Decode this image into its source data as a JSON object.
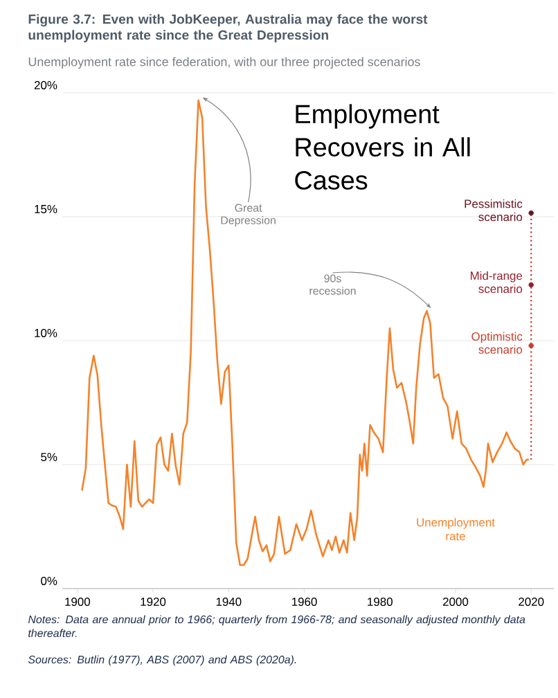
{
  "chart_data": {
    "type": "line",
    "title": "Figure 3.7: Even with JobKeeper, Australia may face the worst unemployment rate since the Great Depression",
    "subtitle": "Unemployment rate since federation, with our three projected scenarios",
    "xlim": [
      1896,
      2026
    ],
    "ylim": [
      0,
      20
    ],
    "xticks": [
      1900,
      1920,
      1940,
      1960,
      1980,
      2000,
      2020
    ],
    "yticks": [
      {
        "value": 0,
        "label": "0%"
      },
      {
        "value": 5,
        "label": "5%"
      },
      {
        "value": 10,
        "label": "10%"
      },
      {
        "value": 15,
        "label": "15%"
      },
      {
        "value": 20,
        "label": "20%"
      }
    ],
    "grid": "y",
    "series": [
      {
        "name": "Unemployment rate",
        "color": "#f4822a",
        "x": [
          1901.2,
          1902.2,
          1903.2,
          1904.3,
          1905.3,
          1906.3,
          1907.2,
          1908.2,
          1909.2,
          1910.2,
          1911.2,
          1912.1,
          1913.1,
          1914.1,
          1915.1,
          1916.1,
          1917.1,
          1918,
          1919,
          1920,
          1921,
          1922,
          1923,
          1924,
          1925,
          1926,
          1927,
          1928,
          1929,
          1930,
          1931,
          1932,
          1933,
          1934,
          1935,
          1936,
          1937,
          1938,
          1939,
          1940,
          1941,
          1942,
          1943,
          1944,
          1945,
          1946,
          1947,
          1948,
          1949,
          1950,
          1951,
          1952,
          1953.3,
          1954.9,
          1956.3,
          1957.9,
          1959.4,
          1960.6,
          1961.8,
          1963.1,
          1964.9,
          1966.4,
          1967.3,
          1968.3,
          1969.3,
          1970.4,
          1971.3,
          1972.2,
          1973.2,
          1974,
          1974.7,
          1975.3,
          1975.9,
          1976.6,
          1977.4,
          1978.4,
          1979.6,
          1980.8,
          1981.8,
          1982.6,
          1983.5,
          1984.5,
          1985.7,
          1986.9,
          1987.8,
          1988.8,
          1989.6,
          1990.6,
          1991.6,
          1992.4,
          1993.3,
          1994.3,
          1995.5,
          1996.7,
          1997.9,
          1999.2,
          2000.4,
          2001.6,
          2002.8,
          2004.1,
          2005.3,
          2006.5,
          2007.4,
          2008,
          2008.6,
          2009.8,
          2011,
          2012.3,
          2013.5,
          2014.5,
          2015.7,
          2016.9,
          2017.9,
          2018.8,
          2019.4
        ],
        "values": [
          3.95,
          4.85,
          8.5,
          9.4,
          8.6,
          6.6,
          5.1,
          3.45,
          3.35,
          3.3,
          2.9,
          2.4,
          5.0,
          3.3,
          5.95,
          3.55,
          3.3,
          3.45,
          3.6,
          3.45,
          5.8,
          6.1,
          5.0,
          4.75,
          6.25,
          4.95,
          4.2,
          6.25,
          6.7,
          9.6,
          16.3,
          19.7,
          19.0,
          15.4,
          13.7,
          11.6,
          9.2,
          7.45,
          8.75,
          9.0,
          5.7,
          1.85,
          0.95,
          0.95,
          1.2,
          2.05,
          2.9,
          1.95,
          1.5,
          1.75,
          1.1,
          1.4,
          2.9,
          1.4,
          1.55,
          2.6,
          1.95,
          2.4,
          3.15,
          2.2,
          1.3,
          1.95,
          1.55,
          2.1,
          1.45,
          1.95,
          1.45,
          3.05,
          1.95,
          2.85,
          5.4,
          4.75,
          5.85,
          4.55,
          6.6,
          6.3,
          6.05,
          5.5,
          8.5,
          10.5,
          8.85,
          8.1,
          8.3,
          7.55,
          6.8,
          5.85,
          8.1,
          9.85,
          10.9,
          11.2,
          10.7,
          8.5,
          8.65,
          7.7,
          7.35,
          6.05,
          7.15,
          5.85,
          5.65,
          5.2,
          4.9,
          4.55,
          4.1,
          4.75,
          5.85,
          5.1,
          5.5,
          5.85,
          6.3,
          5.95,
          5.65,
          5.5,
          5.0,
          5.2,
          5.2
        ]
      },
      {
        "color": "#c0392b",
        "line_style": "dotted",
        "x": [
          2020,
          2020
        ],
        "values": [
          5.2,
          15.15
        ]
      },
      {
        "name": "Optimistic scenario",
        "type": "scatter",
        "marker": "circle",
        "color": "#c8402c",
        "x": [
          2020
        ],
        "values": [
          9.8
        ]
      },
      {
        "name": "Mid-range scenario",
        "type": "scatter",
        "marker": "circle",
        "color": "#96202e",
        "x": [
          2020
        ],
        "values": [
          12.25
        ]
      },
      {
        "name": "Pessimistic scenario",
        "type": "scatter",
        "marker": "circle",
        "color": "#6a1520",
        "x": [
          2020
        ],
        "values": [
          15.15
        ]
      }
    ],
    "annotations": [
      {
        "text": "Great Depression",
        "x": 1932,
        "y": 19.7
      },
      {
        "text": "90s recession",
        "x": 1992.4,
        "y": 11.2
      },
      "Employment Recovers in All Cases",
      "Notes: Data are annual prior to 1966; quarterly from 1966-78; and seasonally adjusted monthly data thereafter.",
      "Sources: Butlin (1977), ABS (2007) and ABS (2020a)."
    ]
  }
}
